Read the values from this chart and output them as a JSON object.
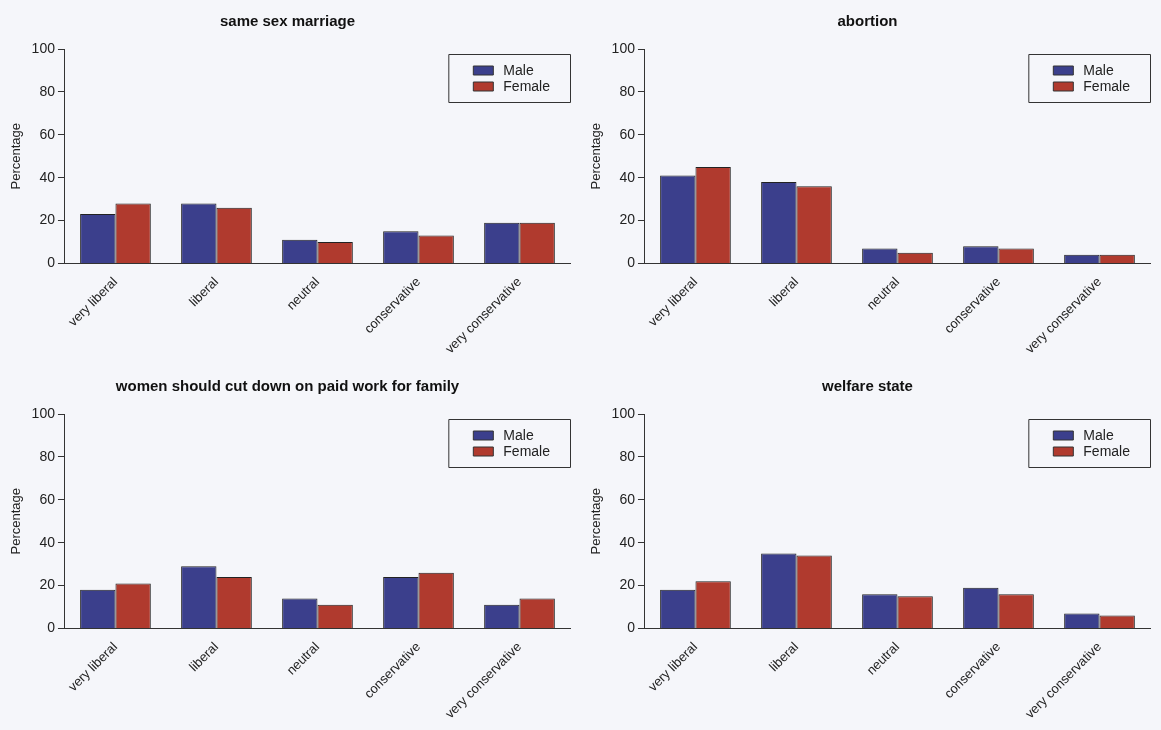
{
  "chart_data": [
    {
      "type": "bar",
      "title": "same sex marriage",
      "ylabel": "Percentage",
      "categories": [
        "very liberal",
        "liberal",
        "neutral",
        "conservative",
        "very conservative"
      ],
      "ylim": [
        0,
        100
      ],
      "yticks": [
        0,
        20,
        40,
        60,
        80,
        100
      ],
      "legend": "top right",
      "series": [
        {
          "name": "Male",
          "color": "#3b3f8c",
          "values": [
            23,
            28,
            11,
            15,
            19
          ]
        },
        {
          "name": "Female",
          "color": "#b03a2e",
          "values": [
            28,
            26,
            10,
            13,
            19
          ]
        }
      ]
    },
    {
      "type": "bar",
      "title": "abortion",
      "ylabel": "Percentage",
      "categories": [
        "very liberal",
        "liberal",
        "neutral",
        "conservative",
        "very conservative"
      ],
      "ylim": [
        0,
        100
      ],
      "yticks": [
        0,
        20,
        40,
        60,
        80,
        100
      ],
      "legend": "top right",
      "series": [
        {
          "name": "Male",
          "color": "#3b3f8c",
          "values": [
            41,
            38,
            7,
            8,
            4
          ]
        },
        {
          "name": "Female",
          "color": "#b03a2e",
          "values": [
            45,
            36,
            5,
            7,
            4
          ]
        }
      ]
    },
    {
      "type": "bar",
      "title": "women should cut down on paid work for family",
      "ylabel": "Percentage",
      "categories": [
        "very liberal",
        "liberal",
        "neutral",
        "conservative",
        "very conservative"
      ],
      "ylim": [
        0,
        100
      ],
      "yticks": [
        0,
        20,
        40,
        60,
        80,
        100
      ],
      "legend": "top right",
      "series": [
        {
          "name": "Male",
          "color": "#3b3f8c",
          "values": [
            18,
            29,
            14,
            24,
            11
          ]
        },
        {
          "name": "Female",
          "color": "#b03a2e",
          "values": [
            21,
            24,
            11,
            26,
            14
          ]
        }
      ]
    },
    {
      "type": "bar",
      "title": "welfare state",
      "ylabel": "Percentage",
      "categories": [
        "very liberal",
        "liberal",
        "neutral",
        "conservative",
        "very conservative"
      ],
      "ylim": [
        0,
        100
      ],
      "yticks": [
        0,
        20,
        40,
        60,
        80,
        100
      ],
      "legend": "top right",
      "series": [
        {
          "name": "Male",
          "color": "#3b3f8c",
          "values": [
            18,
            35,
            16,
            19,
            7
          ]
        },
        {
          "name": "Female",
          "color": "#b03a2e",
          "values": [
            22,
            34,
            15,
            16,
            6
          ]
        }
      ]
    }
  ]
}
